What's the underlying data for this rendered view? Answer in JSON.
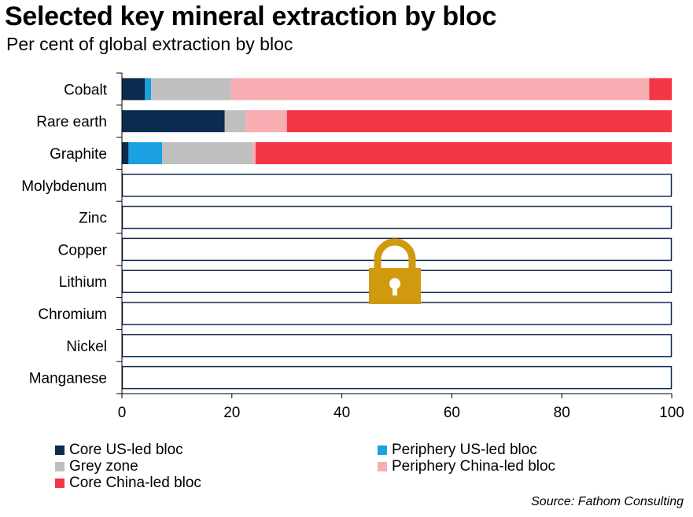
{
  "title": "Selected key mineral extraction by bloc",
  "subtitle": "Per cent of global extraction by bloc",
  "source": "Source: Fathom Consulting",
  "chart_data": {
    "type": "bar",
    "orientation": "horizontal",
    "stacked": true,
    "categories": [
      "Cobalt",
      "Rare earth",
      "Graphite",
      "Molybdenum",
      "Zinc",
      "Copper",
      "Lithium",
      "Chromium",
      "Nickel",
      "Manganese"
    ],
    "series": [
      {
        "name": "Core US-led bloc",
        "color": "#0d2b4e",
        "values": [
          4.2,
          18.7,
          1.2,
          null,
          null,
          null,
          null,
          null,
          null,
          null
        ]
      },
      {
        "name": "Periphery US-led bloc",
        "color": "#1ba1e2",
        "values": [
          1.1,
          0,
          6.1,
          null,
          null,
          null,
          null,
          null,
          null,
          null
        ]
      },
      {
        "name": "Grey zone",
        "color": "#bfbfbf",
        "values": [
          14.5,
          3.8,
          16.5,
          null,
          null,
          null,
          null,
          null,
          null,
          null
        ]
      },
      {
        "name": "Periphery China-led bloc",
        "color": "#f8adb3",
        "values": [
          76.1,
          7.5,
          0.5,
          null,
          null,
          null,
          null,
          null,
          null,
          null
        ]
      },
      {
        "name": "Core China-led bloc",
        "color": "#f23646",
        "values": [
          4.1,
          70.0,
          75.7,
          null,
          null,
          null,
          null,
          null,
          null,
          null
        ]
      }
    ],
    "xlim": [
      0,
      100
    ],
    "xticks": [
      0,
      20,
      40,
      60,
      80,
      100
    ],
    "grid": false,
    "legend_position": "bottom"
  },
  "lock_icon": {
    "name": "padlock-icon",
    "color": "#d19a0e"
  }
}
